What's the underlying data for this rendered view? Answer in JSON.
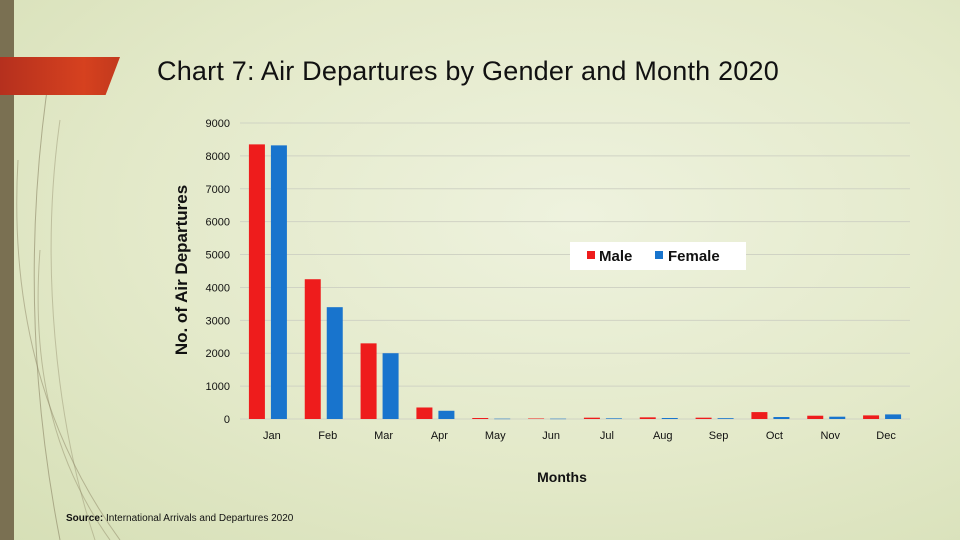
{
  "slide": {
    "title": "Chart 7:  Air Departures by Gender and Month 2020",
    "source_label": "Source:",
    "source_text": " International Arrivals and Departures 2020"
  },
  "colors": {
    "male": "#ee1c1c",
    "female": "#1874cd",
    "grid": "#d0d3c4",
    "accent": "#c9381d"
  },
  "chart_data": {
    "type": "bar",
    "title": "Chart 7:  Air Departures by Gender and Month 2020",
    "xlabel": "Months",
    "ylabel": "No. of Air Departures",
    "ylim": [
      0,
      9000
    ],
    "yticks": [
      0,
      1000,
      2000,
      3000,
      4000,
      5000,
      6000,
      7000,
      8000,
      9000
    ],
    "grid": true,
    "legend_position": "middle-right",
    "categories": [
      "Jan",
      "Feb",
      "Mar",
      "Apr",
      "May",
      "Jun",
      "Jul",
      "Aug",
      "Sep",
      "Oct",
      "Nov",
      "Dec"
    ],
    "series": [
      {
        "name": "Male",
        "values": [
          8350,
          4250,
          2300,
          350,
          30,
          15,
          40,
          50,
          40,
          210,
          100,
          110
        ]
      },
      {
        "name": "Female",
        "values": [
          8320,
          3400,
          2000,
          250,
          10,
          10,
          20,
          30,
          25,
          60,
          70,
          140
        ]
      }
    ]
  }
}
